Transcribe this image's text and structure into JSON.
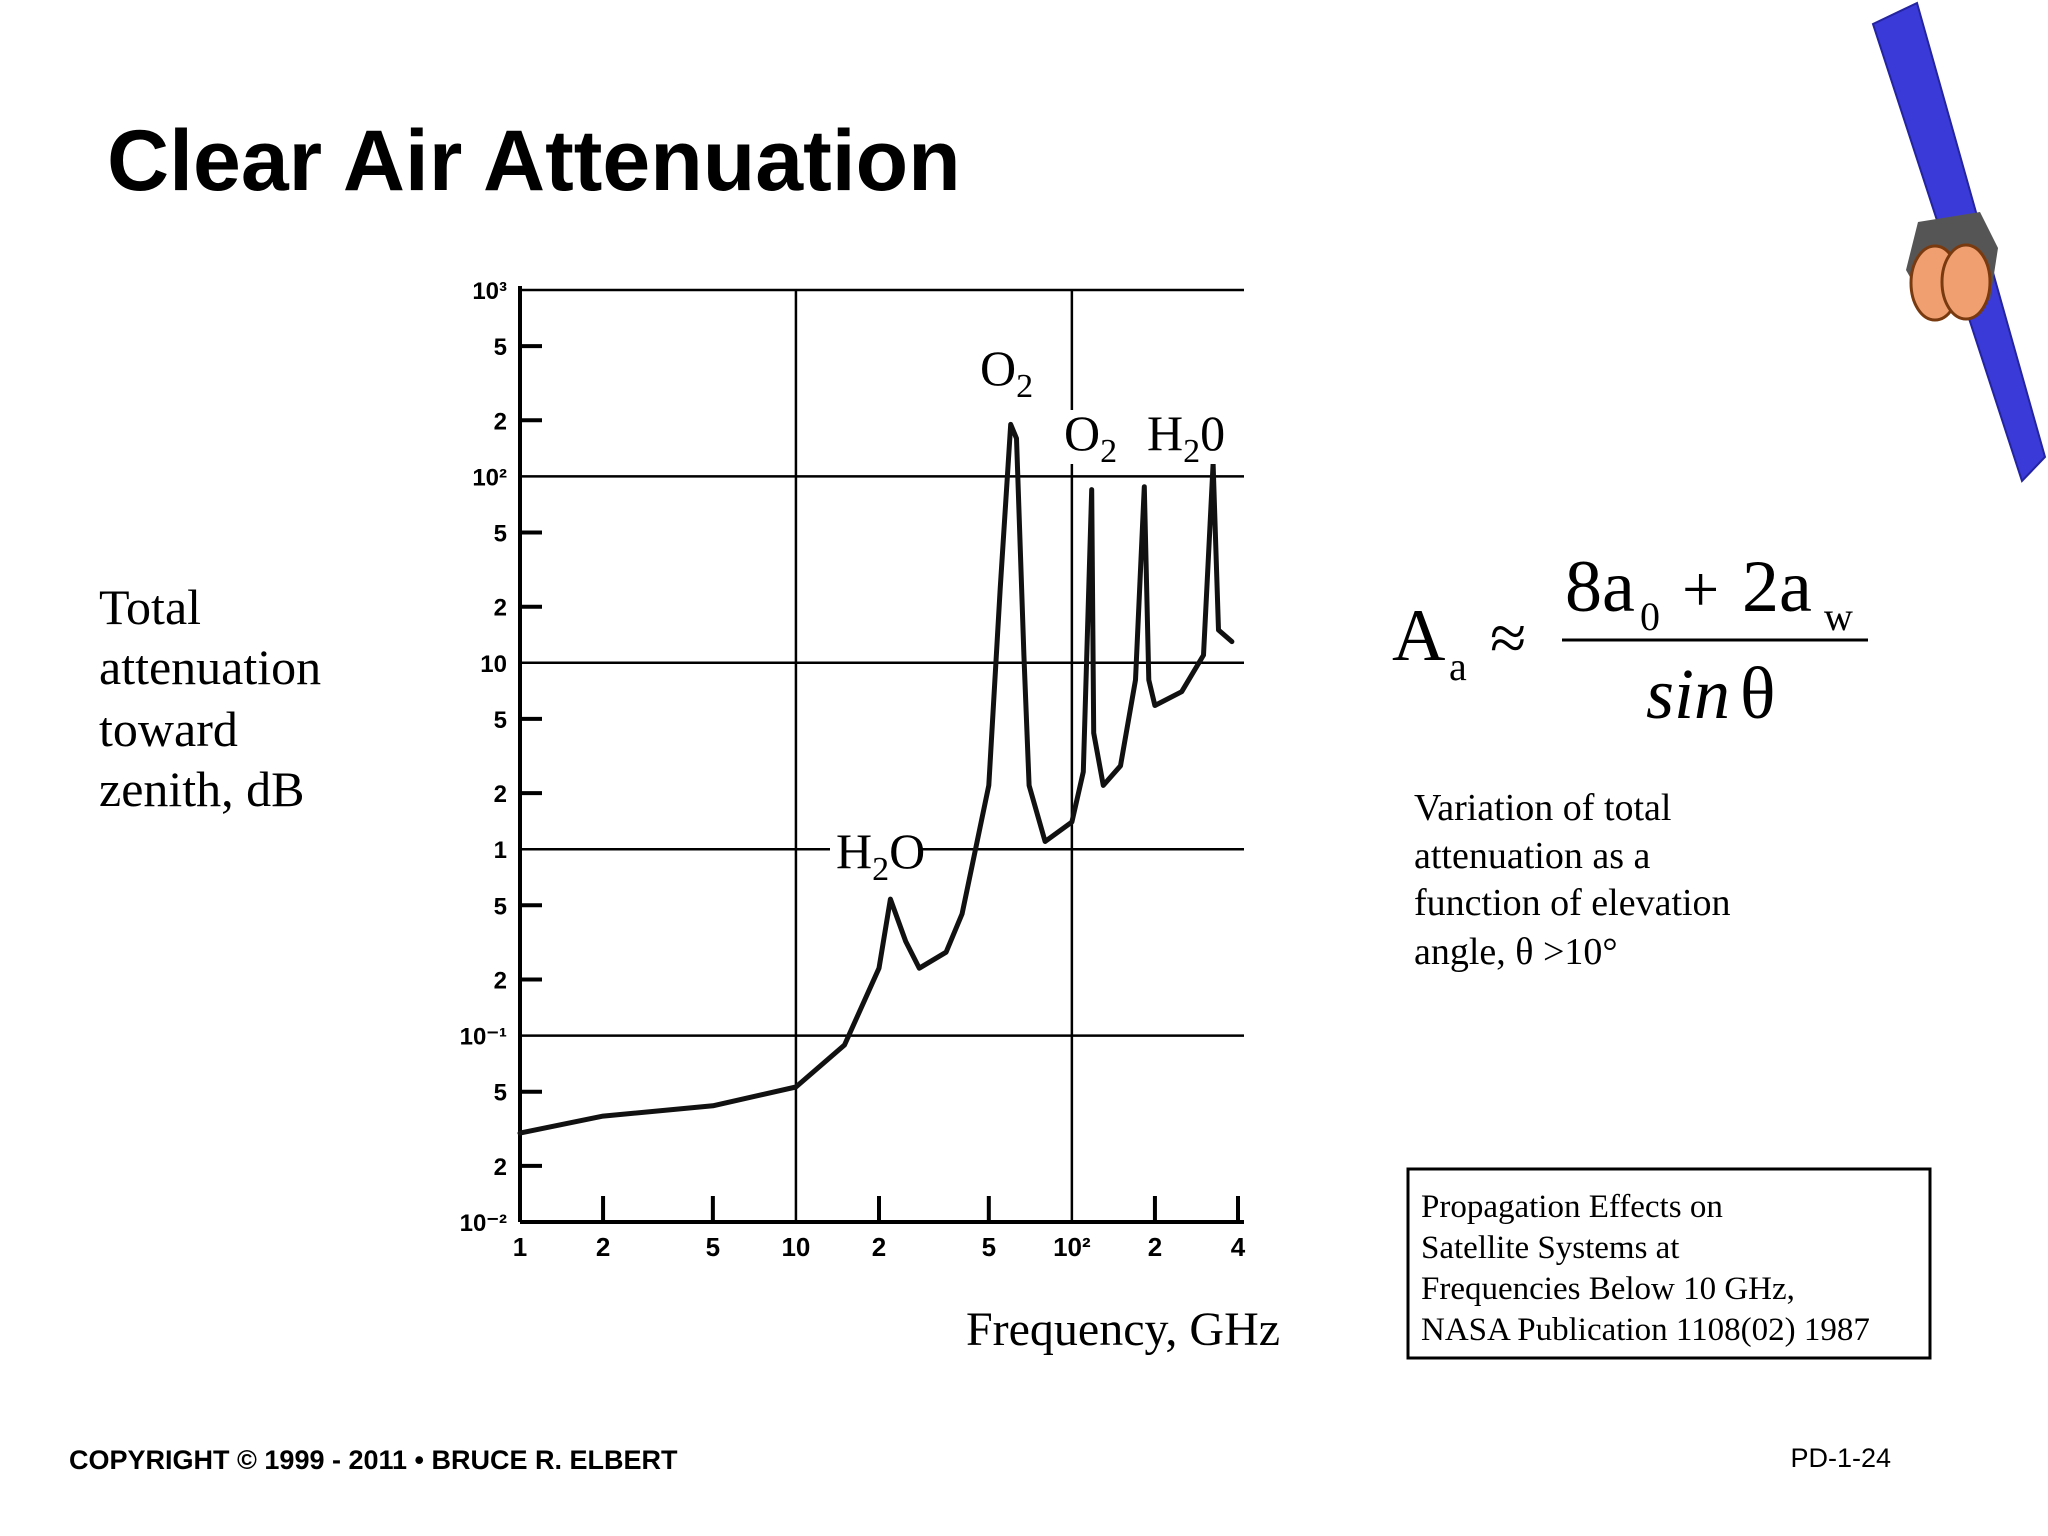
{
  "chart_data": {
    "type": "line",
    "title": "Clear Air Attenuation",
    "y_label": [
      "Total",
      "attenuation",
      "toward",
      "zenith, dB"
    ],
    "x_label": "Frequency, GHz",
    "xscale": "log",
    "yscale": "log",
    "grid": true,
    "color": "#111111",
    "xlim": [
      1,
      400
    ],
    "ylim": [
      0.01,
      1000
    ],
    "xticks": [
      1,
      2,
      5,
      10,
      {
        "value": 20,
        "label": "2"
      },
      {
        "value": 50,
        "label": "5"
      },
      {
        "value": 100,
        "label": "10²"
      },
      {
        "value": 200,
        "label": "2"
      },
      {
        "value": 400,
        "label": "4"
      }
    ],
    "yticks": [
      {
        "value": 0.01,
        "label": "10⁻²"
      },
      {
        "value": 0.02,
        "label": "2"
      },
      {
        "value": 0.05,
        "label": "5"
      },
      {
        "value": 0.1,
        "label": "10⁻¹"
      },
      {
        "value": 0.2,
        "label": "2"
      },
      {
        "value": 0.5,
        "label": "5"
      },
      1,
      2,
      5,
      10,
      {
        "value": 20,
        "label": "2"
      },
      {
        "value": 50,
        "label": "5"
      },
      {
        "value": 100,
        "label": "10²"
      },
      {
        "value": 200,
        "label": "2"
      },
      {
        "value": 500,
        "label": "5"
      },
      {
        "value": 1000,
        "label": "10³"
      }
    ],
    "x": [
      1,
      2,
      5,
      10,
      15,
      20,
      22,
      25,
      28,
      35,
      40,
      50,
      55,
      60,
      63,
      67,
      70,
      80,
      100,
      110,
      118,
      120,
      130,
      150,
      170,
      183,
      190,
      200,
      250,
      300,
      325,
      340,
      380
    ],
    "values": [
      0.03,
      0.037,
      0.042,
      0.053,
      0.089,
      0.23,
      0.54,
      0.32,
      0.23,
      0.28,
      0.45,
      2.2,
      25,
      190,
      160,
      11,
      2.2,
      1.1,
      1.4,
      2.6,
      85,
      4.2,
      2.2,
      2.8,
      8.1,
      88,
      8.1,
      5.9,
      7,
      11,
      117,
      15,
      13
    ],
    "annotations": [
      {
        "text": "O",
        "sub": "2"
      },
      {
        "text": "O",
        "sub": "2"
      },
      {
        "text": "H",
        "sub": "2",
        "rest": "0"
      },
      {
        "text": "H",
        "sub": "2",
        "rest": "O"
      }
    ]
  },
  "formula": {
    "lhs": "A",
    "lhs_sub": "a",
    "op": "≈",
    "n1": "8a",
    "n1_sub": "0",
    "plus": "+",
    "n2": "2a",
    "n2_sub": "w",
    "den": "sin",
    "den_var": "θ"
  },
  "note": [
    "Variation of total",
    "attenuation as a",
    "function of elevation",
    "angle, θ >10°"
  ],
  "reference": [
    "Propagation Effects on",
    "Satellite Systems at",
    "Frequencies Below 10 GHz,",
    "NASA Publication 1108(02) 1987"
  ],
  "footer": {
    "copyright": "COPYRIGHT © 1999 - 2011 • BRUCE R. ELBERT",
    "page_id": "PD-1-24"
  }
}
